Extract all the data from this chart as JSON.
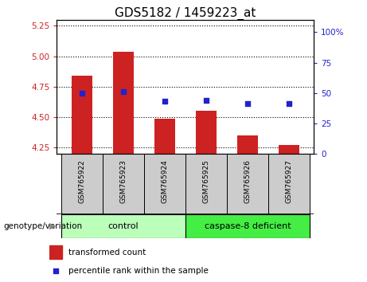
{
  "title": "GDS5182 / 1459223_at",
  "samples": [
    "GSM765922",
    "GSM765923",
    "GSM765924",
    "GSM765925",
    "GSM765926",
    "GSM765927"
  ],
  "transformed_count": [
    4.84,
    5.04,
    4.49,
    4.55,
    4.35,
    4.27
  ],
  "percentile_rank": [
    50,
    51,
    43,
    44,
    41,
    41
  ],
  "ylim_left": [
    4.2,
    5.3
  ],
  "ylim_right": [
    0,
    110.25
  ],
  "yticks_left": [
    4.25,
    4.5,
    4.75,
    5.0,
    5.25
  ],
  "yticks_right": [
    0,
    25,
    50,
    75,
    100
  ],
  "ytick_labels_right": [
    "0",
    "25",
    "50",
    "75",
    "100%"
  ],
  "bar_bottom": 4.2,
  "bar_color": "#cc2222",
  "dot_color": "#2222cc",
  "groups": [
    {
      "label": "control",
      "indices": [
        0,
        1,
        2
      ],
      "color": "#bbffbb"
    },
    {
      "label": "caspase-8 deficient",
      "indices": [
        3,
        4,
        5
      ],
      "color": "#44ee44"
    }
  ],
  "genotype_label": "genotype/variation",
  "legend_bar_label": "transformed count",
  "legend_dot_label": "percentile rank within the sample",
  "grid_color": "#000000",
  "tick_label_color_left": "#cc2222",
  "tick_label_color_right": "#2222cc",
  "background_plot": "#ffffff",
  "background_xtick": "#cccccc",
  "title_fontsize": 11,
  "bar_width": 0.5
}
